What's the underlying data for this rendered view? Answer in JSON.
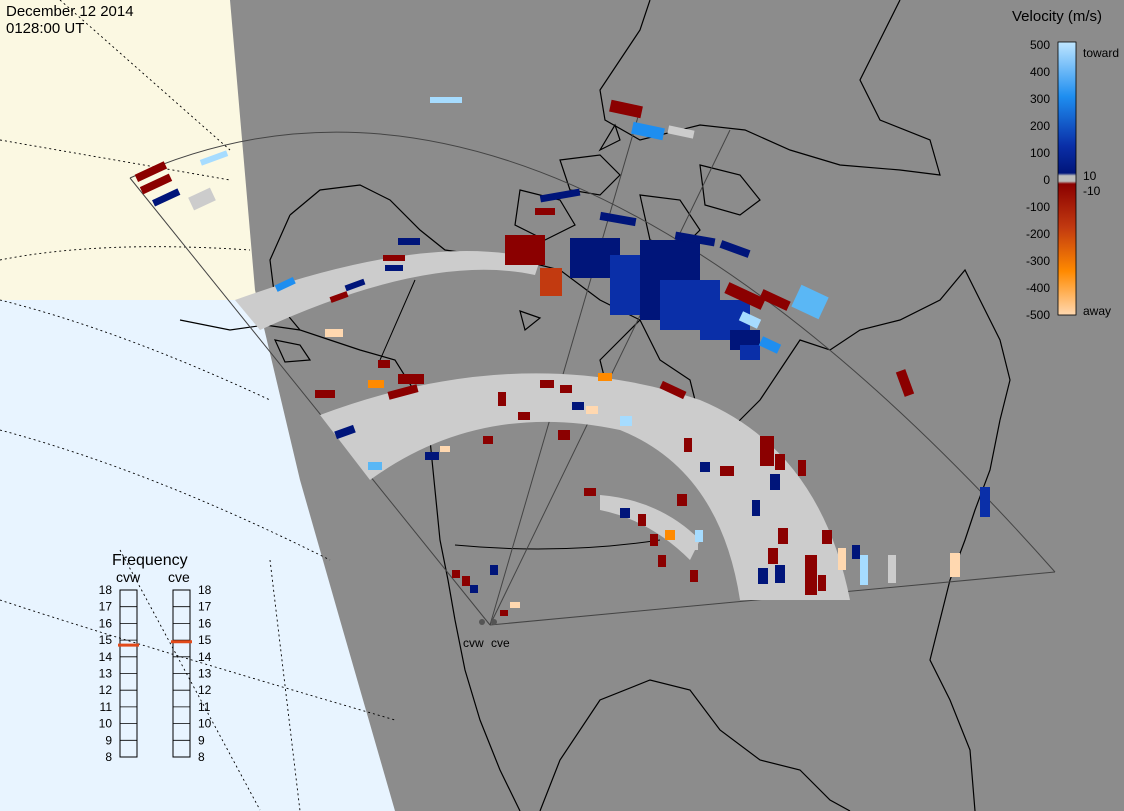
{
  "header": {
    "date": "December 12 2014",
    "time": "0128:00 UT"
  },
  "legend": {
    "title": "Velocity (m/s)",
    "ticks": [
      "500",
      "400",
      "300",
      "200",
      "100",
      "10",
      "0",
      "-10",
      "-100",
      "-200",
      "-300",
      "-400",
      "-500"
    ],
    "toward_label": "toward",
    "away_label": "away"
  },
  "frequency": {
    "title": "Frequency",
    "radars": [
      {
        "name": "cvw",
        "value_mhz": 14.7
      },
      {
        "name": "cve",
        "value_mhz": 14.9
      }
    ],
    "ticks": [
      "18",
      "17",
      "16",
      "15",
      "14",
      "13",
      "12",
      "11",
      "10",
      "9",
      "8"
    ]
  },
  "sites": [
    {
      "name": "cvw"
    },
    {
      "name": "cve"
    }
  ],
  "colors": {
    "scatter_gray": "#cccccc",
    "land_gray": "#8c8c8c",
    "ocean_blue": "#e8f4ff",
    "daylight_cream": "#fbf8e2",
    "toward_dark": "#00157a",
    "toward_light": "#a6dcff",
    "away_dark": "#8b0000",
    "away_light": "#ffd8b0",
    "freq_marker": "#e24a1a"
  }
}
